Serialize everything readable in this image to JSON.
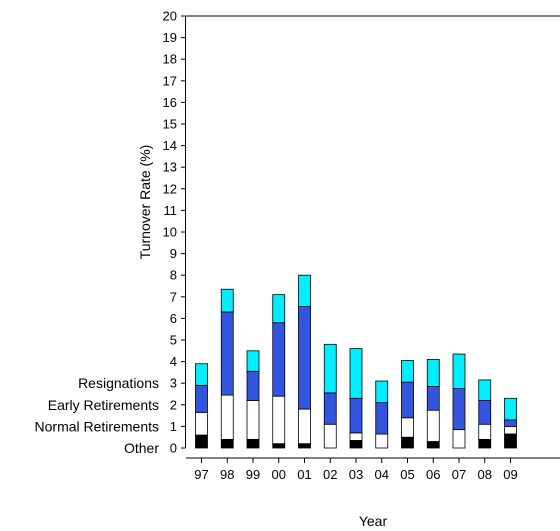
{
  "chart_data": {
    "type": "bar",
    "stacked": true,
    "xlabel": "Year",
    "ylabel": "Turnover Rate (%)",
    "ylim": [
      0,
      20
    ],
    "yticks": [
      0,
      1,
      2,
      3,
      4,
      5,
      6,
      7,
      8,
      9,
      10,
      11,
      12,
      13,
      14,
      15,
      16,
      17,
      18,
      19,
      20
    ],
    "grid": false,
    "legend_position": "left",
    "categories": [
      "97",
      "98",
      "99",
      "00",
      "01",
      "02",
      "03",
      "04",
      "05",
      "06",
      "07",
      "08",
      "09"
    ],
    "series": [
      {
        "name": "Other",
        "color": "#000000",
        "values": [
          0.6,
          0.4,
          0.4,
          0.2,
          0.2,
          0.0,
          0.35,
          0.0,
          0.5,
          0.3,
          0.0,
          0.4,
          0.65
        ]
      },
      {
        "name": "Normal Retirements 1",
        "color": "#ffffff",
        "values": [
          1.05,
          2.05,
          1.8,
          2.2,
          1.6,
          1.1,
          0.35,
          0.65,
          0.9,
          1.45,
          0.85,
          0.7,
          0.35
        ]
      },
      {
        "name": "Early Retirements 2",
        "color": "#3355dd",
        "values": [
          1.25,
          3.85,
          1.35,
          3.4,
          4.75,
          1.45,
          1.6,
          1.45,
          1.65,
          1.1,
          1.9,
          1.1,
          0.3
        ]
      },
      {
        "name": "Resignations 3",
        "color": "#00eeff",
        "values": [
          1.0,
          1.05,
          0.95,
          1.3,
          1.45,
          2.25,
          2.3,
          1.0,
          1.0,
          1.25,
          1.6,
          0.95,
          1.0
        ]
      }
    ]
  },
  "legend": {
    "items": [
      "Resignations",
      "Early Retirements",
      "Normal Retirements",
      "Other"
    ],
    "values": [
      3,
      2,
      1,
      0
    ]
  }
}
